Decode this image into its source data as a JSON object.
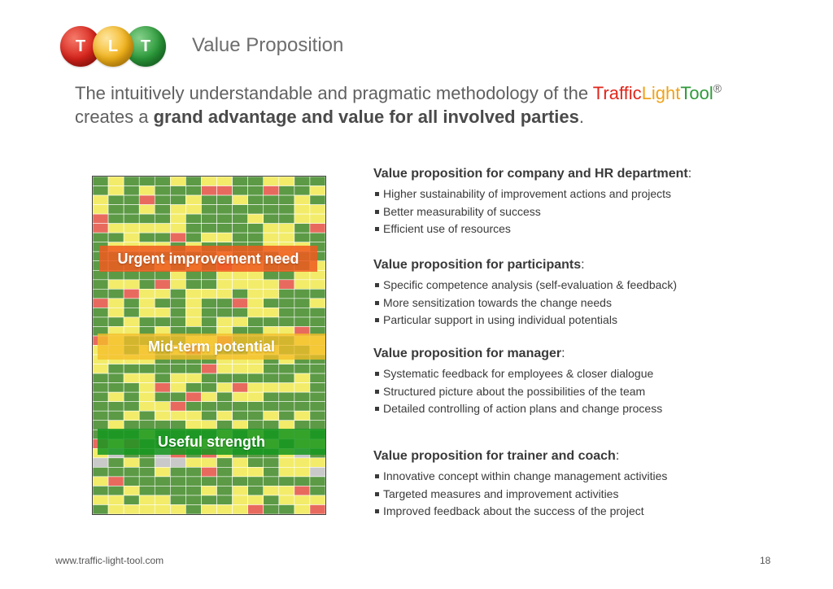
{
  "logo": {
    "letters": [
      "T",
      "L",
      "T"
    ],
    "colors": [
      "#d8231b",
      "#f3b31a",
      "#2b9a3a"
    ]
  },
  "slide_title": "Value Proposition",
  "intro": {
    "text_1": "The intuitively understandable and pragmatic methodology of the ",
    "brand_1": "Traffic",
    "brand_2": "Light",
    "brand_3": "Tool",
    "brand_reg": "®",
    "text_2": "creates a ",
    "bold": "grand advantage and value for all involved parties",
    "text_3": "."
  },
  "heatmap": {
    "colors": {
      "green": "#5c9a45",
      "yellow": "#f2ec6a",
      "red": "#e86a5e",
      "gray": "#c9c9c9"
    },
    "bands": {
      "urgent": "Urgent improvement need",
      "midterm": "Mid-term potential",
      "strength": "Useful strength"
    }
  },
  "value_propositions": [
    {
      "heading": "Value proposition for company and HR department",
      "items": [
        "Higher sustainability of improvement actions and projects",
        "Better measurability of success",
        "Efficient use of resources"
      ]
    },
    {
      "heading": "Value proposition for participants",
      "items": [
        "Specific competence analysis (self-evaluation & feedback)",
        "More sensitization towards the change needs",
        "Particular support in using individual potentials"
      ]
    },
    {
      "heading": "Value proposition for manager",
      "items": [
        "Systematic feedback for employees & closer dialogue",
        "Structured picture about the possibilities of the team",
        "Detailed controlling of action plans and change process"
      ]
    },
    {
      "heading": "Value proposition for trainer and coach",
      "items": [
        "Innovative concept within change management activities",
        "Targeted measures and improvement activities",
        "Improved feedback about the success of the project"
      ]
    }
  ],
  "footer": {
    "url": "www.traffic-light-tool.com",
    "page_number": "18"
  }
}
